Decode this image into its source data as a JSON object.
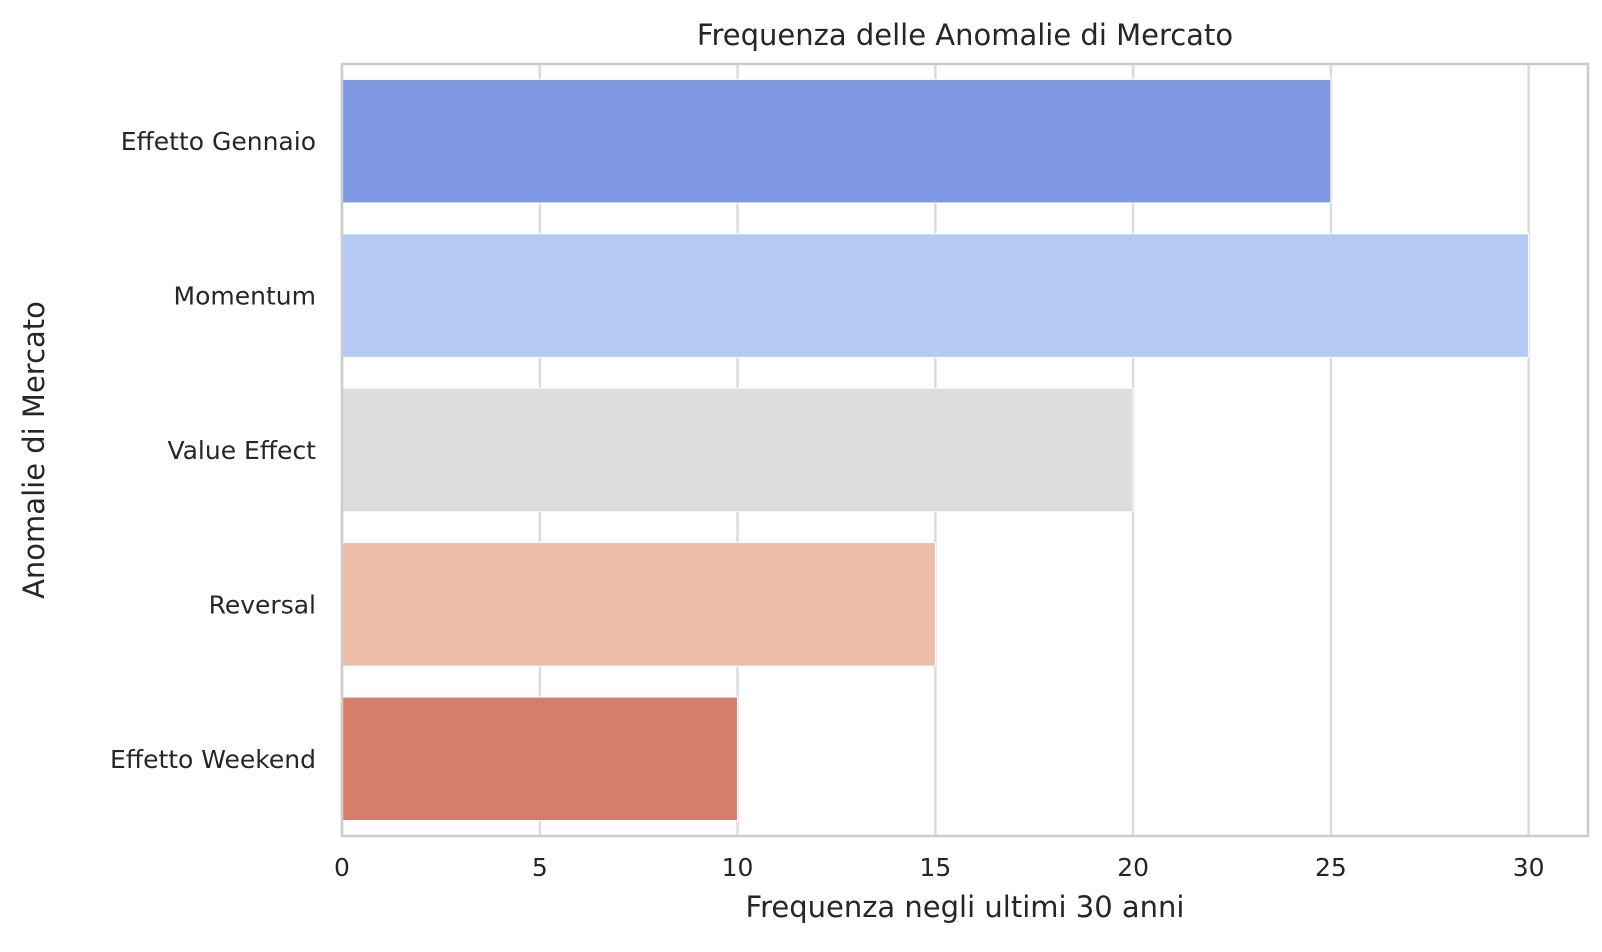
{
  "chart_data": {
    "type": "bar",
    "orientation": "horizontal",
    "title": "Frequenza delle Anomalie di Mercato",
    "xlabel": "Frequenza negli ultimi 30 anni",
    "ylabel": "Anomalie di Mercato",
    "categories": [
      "Effetto Gennaio",
      "Momentum",
      "Value Effect",
      "Reversal",
      "Effetto Weekend"
    ],
    "values": [
      25,
      30,
      20,
      15,
      10
    ],
    "colors": [
      "#7f99e2",
      "#b5c9f3",
      "#dddddd",
      "#ecbca7",
      "#d67e6c"
    ],
    "xlim": [
      0,
      31.5
    ],
    "xticks": [
      0,
      5,
      10,
      15,
      20,
      25,
      30
    ],
    "grid": true,
    "legend": false
  }
}
